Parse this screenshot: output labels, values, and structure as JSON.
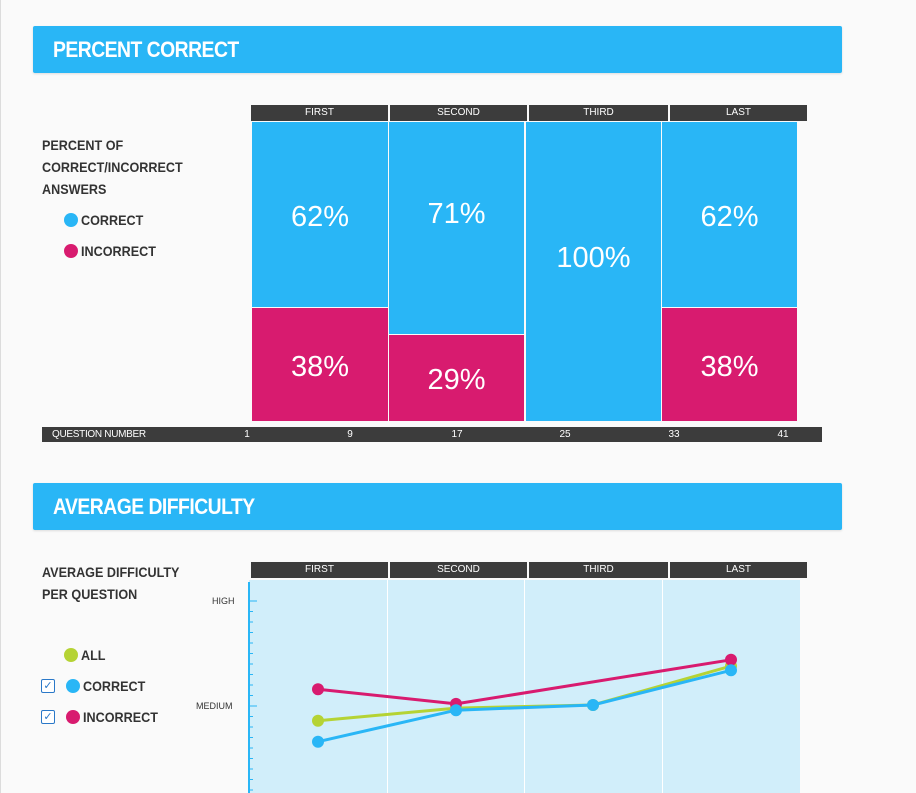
{
  "percent_section": {
    "title": "PERCENT CORRECT",
    "legend_title_lines": [
      "PERCENT OF",
      "CORRECT/INCORRECT",
      "ANSWERS"
    ],
    "legend": [
      {
        "label": "CORRECT",
        "color": "#29b6f6"
      },
      {
        "label": "INCORRECT",
        "color": "#d81b6f"
      }
    ],
    "axis_label": "QUESTION NUMBER",
    "question_numbers": [
      "1",
      "9",
      "17",
      "25",
      "33",
      "41"
    ]
  },
  "difficulty_section": {
    "title": "AVERAGE DIFFICULTY",
    "legend_title_lines": [
      "AVERAGE DIFFICULTY",
      "PER QUESTION"
    ],
    "legend": [
      {
        "label": "ALL",
        "color": "#b5d334",
        "checkbox": false
      },
      {
        "label": "CORRECT",
        "color": "#29b6f6",
        "checkbox": true
      },
      {
        "label": "INCORRECT",
        "color": "#d81b6f",
        "checkbox": true
      }
    ],
    "checkbox_glyph": "✓",
    "y_labels": [
      "HIGH",
      "MEDIUM"
    ]
  },
  "chart_data": [
    {
      "type": "bar",
      "title": "PERCENT CORRECT",
      "stacked": true,
      "categories": [
        "FIRST",
        "SECOND",
        "THIRD",
        "LAST"
      ],
      "series": [
        {
          "name": "CORRECT",
          "color": "#29b6f6",
          "values": [
            62,
            71,
            100,
            62
          ],
          "labels": [
            "62%",
            "71%",
            "100%",
            "62%"
          ]
        },
        {
          "name": "INCORRECT",
          "color": "#d81b6f",
          "values": [
            38,
            29,
            0,
            38
          ],
          "labels": [
            "38%",
            "29%",
            "",
            "38%"
          ]
        }
      ],
      "xlabel": "QUESTION NUMBER",
      "x_ticks": [
        "1",
        "9",
        "17",
        "25",
        "33",
        "41"
      ],
      "ylim": [
        0,
        100
      ]
    },
    {
      "type": "line",
      "title": "AVERAGE DIFFICULTY",
      "categories": [
        "FIRST",
        "SECOND",
        "THIRD",
        "LAST"
      ],
      "ylabel": "AVERAGE DIFFICULTY PER QUESTION",
      "ylim": [
        0,
        2
      ],
      "y_ticks": [
        {
          "value": 1,
          "label": "MEDIUM"
        },
        {
          "value": 2,
          "label": "HIGH"
        }
      ],
      "series": [
        {
          "name": "ALL",
          "color": "#b5d334",
          "x": [
            0,
            1,
            2,
            3
          ],
          "values": [
            0.86,
            0.98,
            1.01,
            1.38
          ]
        },
        {
          "name": "CORRECT",
          "color": "#29b6f6",
          "x": [
            0,
            1,
            2,
            3
          ],
          "values": [
            0.66,
            0.96,
            1.01,
            1.34
          ]
        },
        {
          "name": "INCORRECT",
          "color": "#d81b6f",
          "x": [
            0,
            1,
            3
          ],
          "values": [
            1.16,
            1.02,
            1.44
          ]
        }
      ]
    }
  ]
}
